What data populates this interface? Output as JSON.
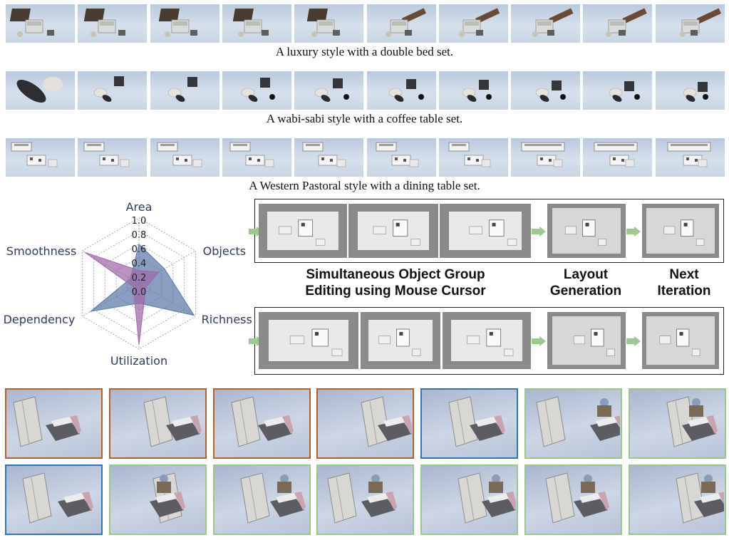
{
  "rows": [
    {
      "caption": "A luxury style with a double bed set.",
      "style": "luxury",
      "thumb_count": 10
    },
    {
      "caption": "A wabi-sabi style with a coffee table set.",
      "style": "wabi",
      "thumb_count": 10
    },
    {
      "caption": "A Western Pastoral style with a dining table set.",
      "style": "pastoral",
      "thumb_count": 10
    }
  ],
  "chart_data": {
    "type": "radar",
    "axes": [
      "Area",
      "Objects",
      "Richness",
      "Utilization",
      "Dependency",
      "Smoothness"
    ],
    "tick_labels": [
      "1.0",
      "0.8",
      "0.6",
      "0.4",
      "0.2",
      "0.0"
    ],
    "range": [
      0,
      1
    ],
    "grid": true,
    "series": [
      {
        "values": [
          0.6,
          0.45,
          0.97,
          0.3,
          0.85,
          0.15
        ],
        "color": "#5b78a8"
      },
      {
        "values": [
          0.2,
          0.35,
          0.12,
          0.93,
          0.1,
          0.95
        ],
        "color": "#a06aa8"
      }
    ]
  },
  "pipeline": {
    "labels": {
      "group_edit_line1": "Simultaneous Object Group",
      "group_edit_line2": "Editing using Mouse Cursor",
      "layout_line1": "Layout",
      "layout_line2": "Generation",
      "next_line1": "Next",
      "next_line2": "Iteration"
    },
    "arrow_color": "#9cc98f"
  },
  "gallery": {
    "border_colors": {
      "orange": "#b3622b",
      "blue": "#2e76b8",
      "green": "#9dc68a"
    },
    "row1": [
      "orange",
      "orange",
      "orange",
      "orange",
      "blue",
      "green",
      "green"
    ],
    "row2": [
      "blue",
      "green",
      "green",
      "green",
      "green",
      "green",
      "green"
    ]
  }
}
